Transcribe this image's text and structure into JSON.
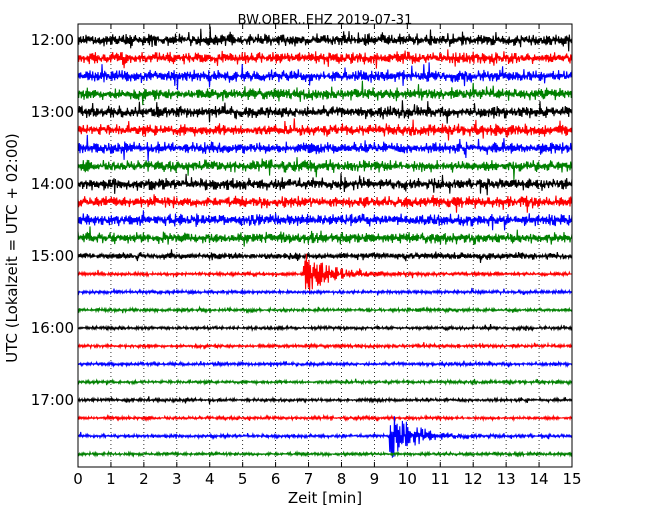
{
  "chart_data": {
    "type": "line",
    "title": "BW.OBER..EHZ 2019-07-31",
    "xlabel": "Zeit  [min]",
    "ylabel": "UTC (Lokalzeit = UTC + 02:00)",
    "xlim": [
      0,
      15
    ],
    "x_ticks": [
      "0",
      "1",
      "2",
      "3",
      "4",
      "5",
      "6",
      "7",
      "8",
      "9",
      "10",
      "11",
      "12",
      "13",
      "14",
      "15"
    ],
    "y_ticks": [
      "12:00",
      "13:00",
      "14:00",
      "15:00",
      "16:00",
      "17:00"
    ],
    "grid": "vertical dotted",
    "colors": [
      "#000000",
      "#ff0000",
      "#0000ff",
      "#008000"
    ],
    "series": [
      {
        "start": "12:00",
        "color": "#000000",
        "amplitude": "high"
      },
      {
        "start": "12:15",
        "color": "#ff0000",
        "amplitude": "high"
      },
      {
        "start": "12:30",
        "color": "#0000ff",
        "amplitude": "high"
      },
      {
        "start": "12:45",
        "color": "#008000",
        "amplitude": "high"
      },
      {
        "start": "13:00",
        "color": "#000000",
        "amplitude": "high"
      },
      {
        "start": "13:15",
        "color": "#ff0000",
        "amplitude": "high"
      },
      {
        "start": "13:30",
        "color": "#0000ff",
        "amplitude": "high"
      },
      {
        "start": "13:45",
        "color": "#008000",
        "amplitude": "high"
      },
      {
        "start": "14:00",
        "color": "#000000",
        "amplitude": "high"
      },
      {
        "start": "14:15",
        "color": "#ff0000",
        "amplitude": "high"
      },
      {
        "start": "14:30",
        "color": "#0000ff",
        "amplitude": "high"
      },
      {
        "start": "14:45",
        "color": "#008000",
        "amplitude": "high"
      },
      {
        "start": "15:00",
        "color": "#000000",
        "amplitude": "medium"
      },
      {
        "start": "15:15",
        "color": "#ff0000",
        "amplitude": "low",
        "event_min": 6.85
      },
      {
        "start": "15:30",
        "color": "#0000ff",
        "amplitude": "low"
      },
      {
        "start": "15:45",
        "color": "#008000",
        "amplitude": "low"
      },
      {
        "start": "16:00",
        "color": "#000000",
        "amplitude": "low"
      },
      {
        "start": "16:15",
        "color": "#ff0000",
        "amplitude": "low"
      },
      {
        "start": "16:30",
        "color": "#0000ff",
        "amplitude": "low"
      },
      {
        "start": "16:45",
        "color": "#008000",
        "amplitude": "low"
      },
      {
        "start": "17:00",
        "color": "#000000",
        "amplitude": "low"
      },
      {
        "start": "17:15",
        "color": "#ff0000",
        "amplitude": "low"
      },
      {
        "start": "17:30",
        "color": "#0000ff",
        "amplitude": "low",
        "event_min": 9.45
      },
      {
        "start": "17:45",
        "color": "#008000",
        "amplitude": "low"
      }
    ]
  }
}
